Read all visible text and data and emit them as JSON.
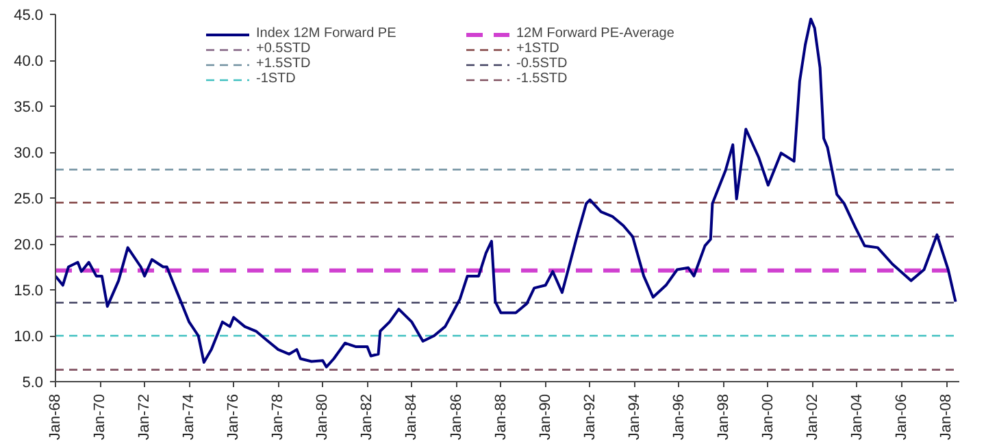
{
  "chart_data": {
    "type": "line",
    "legend": "top",
    "grid": false,
    "line_style": "solid",
    "marker": "none",
    "xlim": [
      "1968-01",
      "2008-08"
    ],
    "ylim": [
      5,
      45
    ],
    "xticks": [
      {
        "value": "1968-01",
        "label": "Jan-68"
      },
      {
        "value": "1970-01",
        "label": "Jan-70"
      },
      {
        "value": "1972-01",
        "label": "Jan-72"
      },
      {
        "value": "1974-01",
        "label": "Jan-74"
      },
      {
        "value": "1976-01",
        "label": "Jan-76"
      },
      {
        "value": "1978-01",
        "label": "Jan-78"
      },
      {
        "value": "1980-01",
        "label": "Jan-80"
      },
      {
        "value": "1982-01",
        "label": "Jan-82"
      },
      {
        "value": "1984-01",
        "label": "Jan-84"
      },
      {
        "value": "1986-01",
        "label": "Jan-86"
      },
      {
        "value": "1988-01",
        "label": "Jan-88"
      },
      {
        "value": "1990-01",
        "label": "Jan-90"
      },
      {
        "value": "1992-01",
        "label": "Jan-92"
      },
      {
        "value": "1994-01",
        "label": "Jan-94"
      },
      {
        "value": "1996-01",
        "label": "Jan-96"
      },
      {
        "value": "1998-01",
        "label": "Jan-98"
      },
      {
        "value": "2000-01",
        "label": "Jan-00"
      },
      {
        "value": "2002-01",
        "label": "Jan-02"
      },
      {
        "value": "2004-01",
        "label": "Jan-04"
      },
      {
        "value": "2006-01",
        "label": "Jan-06"
      },
      {
        "value": "2008-01",
        "label": "Jan-08"
      }
    ],
    "yticks": [
      {
        "value": 5,
        "label": "5.0"
      },
      {
        "value": 10,
        "label": "10.0"
      },
      {
        "value": 15,
        "label": "15.0"
      },
      {
        "value": 20,
        "label": "20.0"
      },
      {
        "value": 25,
        "label": "25.0"
      },
      {
        "value": 30,
        "label": "30.0"
      },
      {
        "value": 35,
        "label": "35.0"
      },
      {
        "value": 40,
        "label": "40.0"
      },
      {
        "value": 45,
        "label": "45.0"
      }
    ],
    "series": [
      {
        "name": "Index 12M Forward PE",
        "color": "#00007f",
        "x": [
          "1968-01",
          "1968-05",
          "1968-08",
          "1969-01",
          "1969-03",
          "1969-07",
          "1969-11",
          "1970-02",
          "1970-05",
          "1970-11",
          "1971-04",
          "1971-11",
          "1972-01",
          "1972-05",
          "1972-11",
          "1973-01",
          "1973-05",
          "1973-09",
          "1974-01",
          "1974-06",
          "1974-09",
          "1975-01",
          "1975-07",
          "1975-11",
          "1976-01",
          "1976-07",
          "1977-01",
          "1977-07",
          "1978-01",
          "1978-07",
          "1978-11",
          "1979-01",
          "1979-07",
          "1980-01",
          "1980-03",
          "1980-07",
          "1981-01",
          "1981-07",
          "1982-01",
          "1982-03",
          "1982-07",
          "1982-08",
          "1983-01",
          "1983-06",
          "1984-01",
          "1984-07",
          "1985-01",
          "1985-07",
          "1985-11",
          "1986-03",
          "1986-07",
          "1987-01",
          "1987-05",
          "1987-08",
          "1987-10",
          "1988-01",
          "1988-09",
          "1989-03",
          "1989-07",
          "1990-01",
          "1990-05",
          "1990-10",
          "1991-01",
          "1991-06",
          "1991-11",
          "1992-01",
          "1992-07",
          "1993-01",
          "1993-07",
          "1993-12",
          "1994-06",
          "1994-11",
          "1995-06",
          "1995-12",
          "1996-06",
          "1996-09",
          "1997-03",
          "1997-06",
          "1997-07",
          "1998-02",
          "1998-06",
          "1998-08",
          "1999-01",
          "1999-08",
          "2000-01",
          "2000-08",
          "2001-03",
          "2001-06",
          "2001-09",
          "2001-12",
          "2002-02",
          "2002-05",
          "2002-07",
          "2002-09",
          "2003-02",
          "2003-06",
          "2003-12",
          "2004-05",
          "2004-12",
          "2005-08",
          "2006-06",
          "2007-01",
          "2007-08",
          "2008-02",
          "2008-06"
        ],
        "values": [
          16.5,
          15.5,
          17.5,
          18.0,
          17.0,
          18.0,
          16.5,
          16.5,
          13.2,
          16.0,
          19.6,
          17.5,
          16.5,
          18.3,
          17.5,
          17.5,
          15.5,
          13.5,
          11.5,
          10.0,
          7.1,
          8.5,
          11.5,
          11.0,
          12.0,
          11.0,
          10.5,
          9.5,
          8.5,
          8.0,
          8.5,
          7.5,
          7.2,
          7.3,
          6.6,
          7.5,
          9.2,
          8.8,
          8.8,
          7.8,
          8.0,
          10.5,
          11.5,
          12.9,
          11.5,
          9.4,
          10.0,
          11.0,
          12.5,
          14.0,
          16.5,
          16.5,
          19.0,
          20.3,
          13.7,
          12.5,
          12.5,
          13.5,
          15.2,
          15.5,
          17.0,
          14.7,
          17.0,
          20.8,
          24.4,
          24.8,
          23.5,
          23.0,
          22.0,
          20.8,
          16.5,
          14.2,
          15.5,
          17.2,
          17.4,
          16.5,
          19.8,
          20.5,
          24.4,
          28.0,
          30.8,
          24.9,
          32.5,
          29.4,
          26.4,
          29.9,
          29.0,
          37.7,
          41.7,
          44.5,
          43.5,
          39.2,
          31.5,
          30.5,
          25.4,
          24.4,
          21.8,
          19.8,
          19.6,
          17.8,
          16.0,
          17.2,
          21.0,
          17.2,
          13.7
        ]
      }
    ],
    "ref_lines": [
      {
        "axis": "y",
        "value": 17.1,
        "label": "12M Forward PE-Average",
        "color": "#d040d0",
        "line_style": "dashed"
      },
      {
        "axis": "y",
        "value": 20.8,
        "label": "+0.5STD",
        "color": "#806080",
        "line_style": "dashed"
      },
      {
        "axis": "y",
        "value": 24.5,
        "label": "+1STD",
        "color": "#804040",
        "line_style": "dashed"
      },
      {
        "axis": "y",
        "value": 28.1,
        "label": "+1.5STD",
        "color": "#7090a0",
        "line_style": "dashed"
      },
      {
        "axis": "y",
        "value": 13.6,
        "label": "-0.5STD",
        "color": "#404060",
        "line_style": "dashed"
      },
      {
        "axis": "y",
        "value": 10.0,
        "label": "-1STD",
        "color": "#40c0c0",
        "line_style": "dashed"
      },
      {
        "axis": "y",
        "value": 6.3,
        "label": "-1.5STD",
        "color": "#805060",
        "line_style": "dashed"
      }
    ]
  }
}
